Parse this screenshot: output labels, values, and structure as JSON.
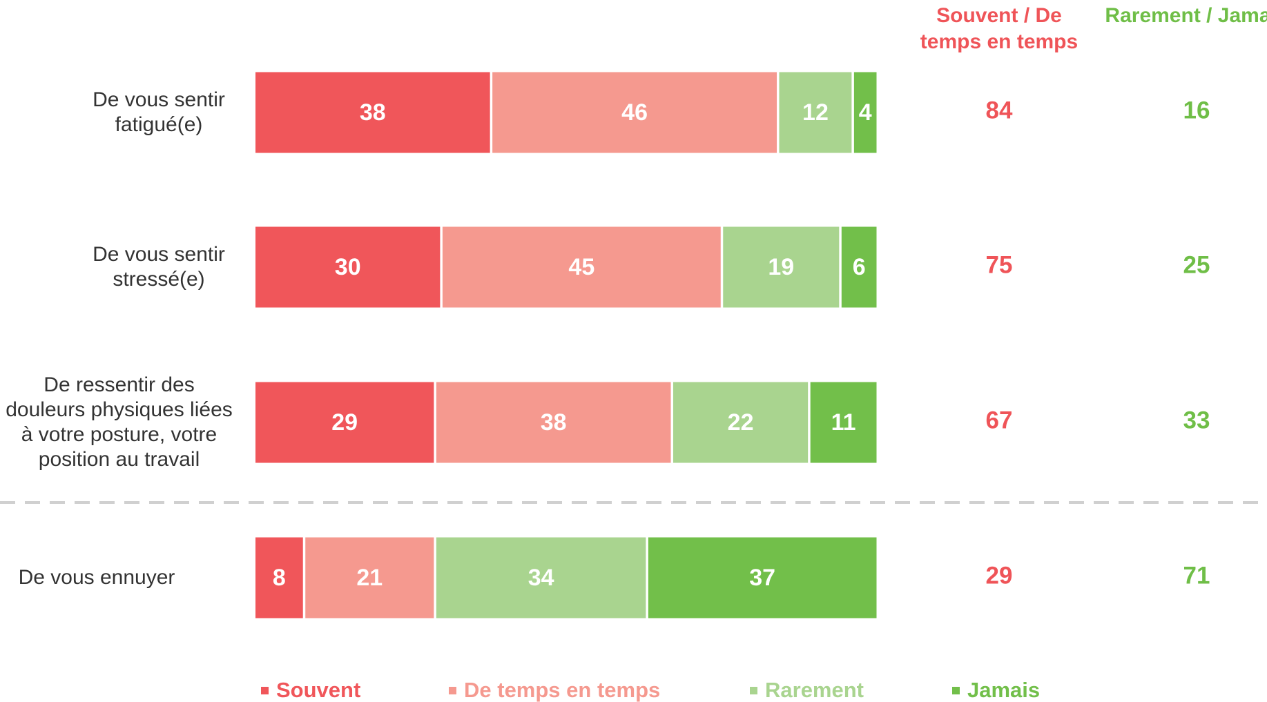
{
  "chart_data": {
    "type": "bar",
    "orientation": "horizontal",
    "stacked": true,
    "categories": [
      "De vous sentir fatigué(e)",
      "De vous sentir stressé(e)",
      "De ressentir des douleurs physiques liées à votre posture, votre position au travail",
      "De vous ennuyer"
    ],
    "series": [
      {
        "name": "Souvent",
        "color": "#f0565a",
        "values": [
          38,
          30,
          29,
          8
        ]
      },
      {
        "name": "De temps en temps",
        "color": "#f5998f",
        "values": [
          46,
          45,
          38,
          21
        ]
      },
      {
        "name": "Rarement",
        "color": "#a9d48f",
        "values": [
          12,
          19,
          22,
          34
        ]
      },
      {
        "name": "Jamais",
        "color": "#72bf4a",
        "values": [
          4,
          6,
          11,
          37
        ]
      }
    ],
    "xlim": [
      0,
      100
    ],
    "summary_columns": [
      {
        "title": "Souvent / De temps en temps",
        "color": "#ef5458",
        "values": [
          84,
          75,
          67,
          29
        ]
      },
      {
        "title": "Rarement / Jamais",
        "color": "#6fbe47",
        "values": [
          16,
          25,
          33,
          71
        ]
      }
    ],
    "legend": "bottom"
  }
}
